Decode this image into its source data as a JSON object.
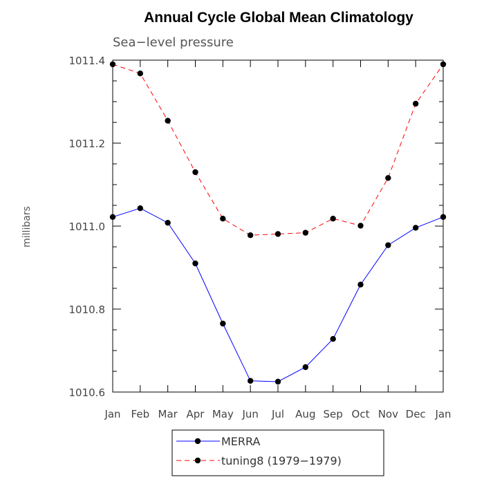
{
  "chart_data": {
    "type": "line",
    "title": "Annual Cycle Global Mean Climatology",
    "subtitle": "Sea−level pressure",
    "xlabel": "",
    "ylabel": "millibars",
    "categories": [
      "Jan",
      "Feb",
      "Mar",
      "Apr",
      "May",
      "Jun",
      "Jul",
      "Aug",
      "Sep",
      "Oct",
      "Nov",
      "Dec",
      "Jan"
    ],
    "ylim": [
      1010.6,
      1011.4
    ],
    "yticks": [
      1010.6,
      1010.8,
      1011.0,
      1011.2,
      1011.4
    ],
    "ytick_labels": [
      "1010.6",
      "1010.8",
      "1011.0",
      "1011.2",
      "1011.4"
    ],
    "grid": false,
    "legend_position": "bottom-center",
    "series": [
      {
        "name": "MERRA",
        "color": "#0000ff",
        "dashed": false,
        "values": [
          1011.022,
          1011.043,
          1011.008,
          1010.91,
          1010.765,
          1010.627,
          1010.625,
          1010.66,
          1010.728,
          1010.859,
          1010.954,
          1010.996,
          1011.022
        ]
      },
      {
        "name": "tuning8 (1979−1979)",
        "color": "#ff0000",
        "dashed": true,
        "values": [
          1011.39,
          1011.368,
          1011.254,
          1011.13,
          1011.018,
          1010.978,
          1010.981,
          1010.984,
          1011.018,
          1011.001,
          1011.116,
          1011.295,
          1011.39
        ]
      }
    ]
  }
}
